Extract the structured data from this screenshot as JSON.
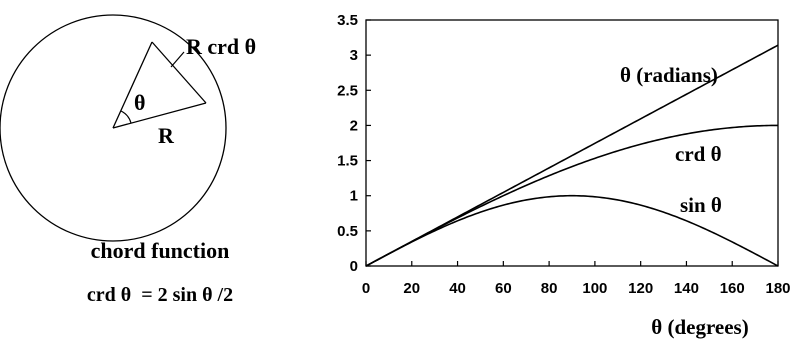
{
  "diagram": {
    "chord_label": "R crd θ",
    "angle_label": "θ",
    "radius_label": "R",
    "caption_title": "chord function",
    "caption_formula": "crd θ  = 2 sin θ /2"
  },
  "chart_data": {
    "type": "line",
    "xlabel": "θ (degrees)",
    "ylabel": "",
    "xlim": [
      0,
      180
    ],
    "ylim": [
      0,
      3.5
    ],
    "x_ticks": [
      "0",
      "20",
      "40",
      "60",
      "80",
      "100",
      "120",
      "140",
      "160",
      "180"
    ],
    "y_ticks": [
      "0",
      "0.5",
      "1",
      "1.5",
      "2",
      "2.5",
      "3",
      "3.5"
    ],
    "grid": false,
    "series": [
      {
        "name": "θ (radians)",
        "function": "theta_radians",
        "x": [
          0,
          30,
          60,
          90,
          120,
          150,
          180
        ],
        "y": [
          0,
          0.524,
          1.047,
          1.571,
          2.094,
          2.618,
          3.142
        ]
      },
      {
        "name": "crd θ",
        "function": "chord",
        "x": [
          0,
          30,
          60,
          90,
          120,
          150,
          180
        ],
        "y": [
          0,
          0.518,
          1.0,
          1.414,
          1.732,
          1.932,
          2.0
        ]
      },
      {
        "name": "sin θ",
        "function": "sine",
        "x": [
          0,
          30,
          60,
          90,
          120,
          150,
          180
        ],
        "y": [
          0,
          0.5,
          0.866,
          1.0,
          0.866,
          0.5,
          0.0
        ]
      }
    ]
  }
}
